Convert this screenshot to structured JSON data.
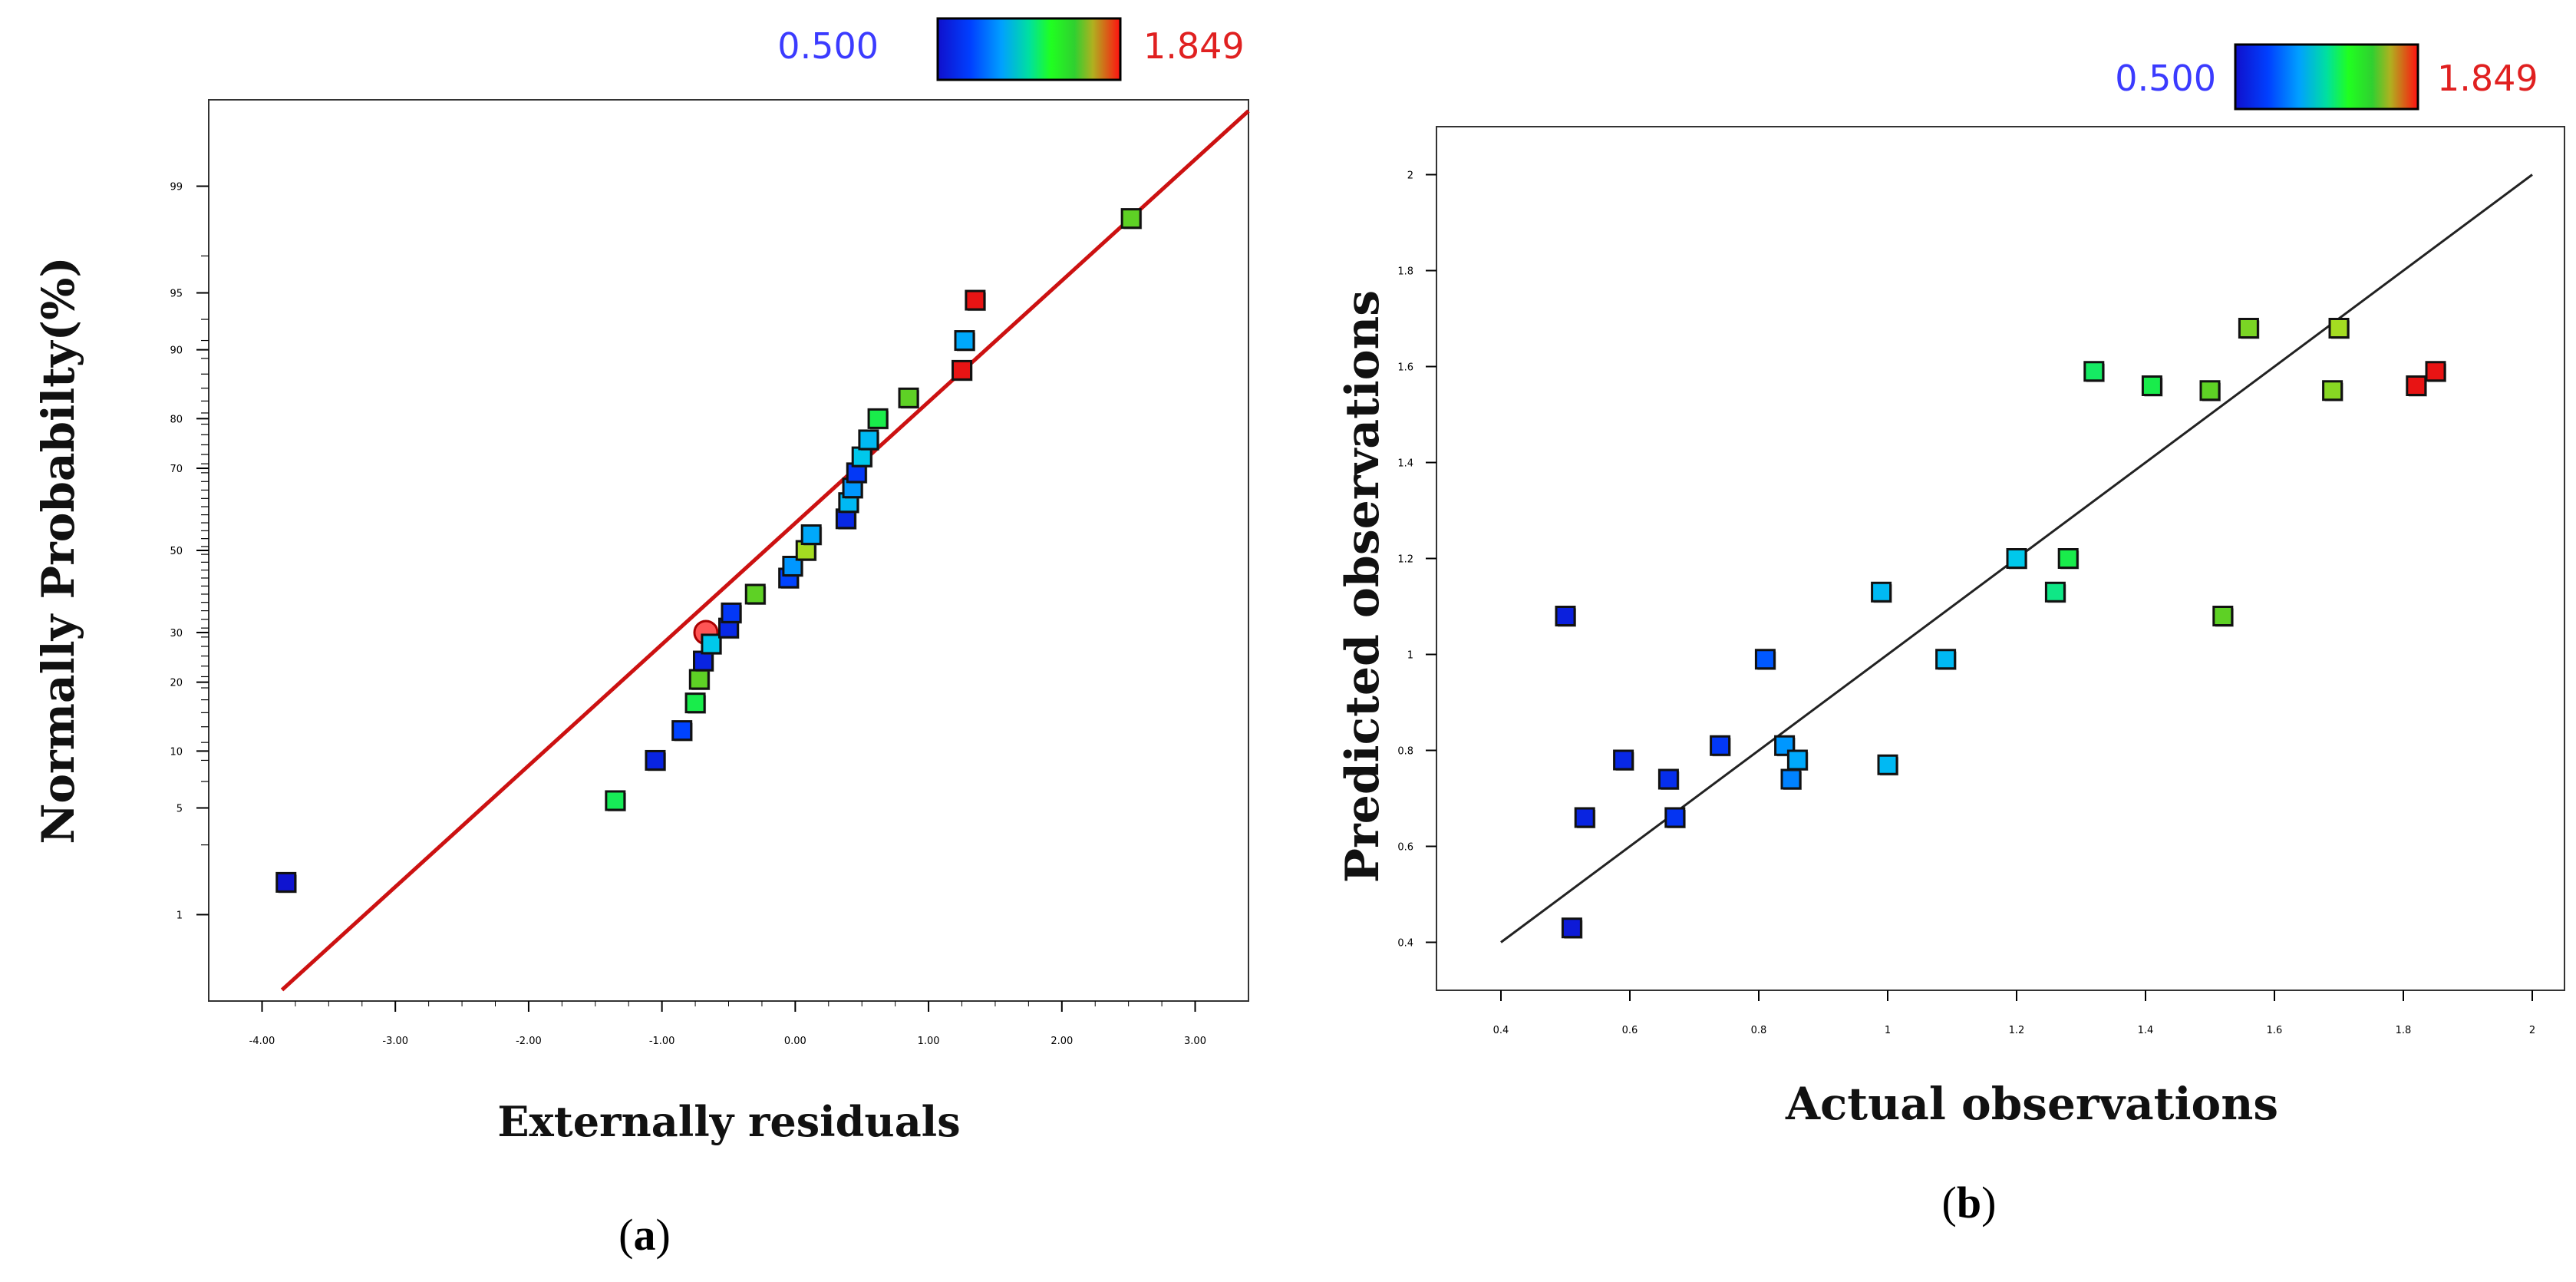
{
  "colors": {
    "low": "#3b3bff",
    "high": "#e02020",
    "fitline_a": "#cc1111",
    "fitline_b": "#222222"
  },
  "chart_data": [
    {
      "id": "a",
      "type": "scatter",
      "panel_label": "a",
      "xlabel": "Externally residuals",
      "ylabel": "Normally Probabilty(%)",
      "xlim": [
        -4.4,
        3.4
      ],
      "xticks": [
        "-4.00",
        "-3.00",
        "-2.00",
        "-1.00",
        "0.00",
        "1.00",
        "2.00",
        "3.00"
      ],
      "xtick_values": [
        -4,
        -3,
        -2,
        -1,
        0,
        1,
        2,
        3
      ],
      "yscale": "normal-probability",
      "ylim": [
        0.2,
        99.8
      ],
      "yticks": [
        "1",
        "5",
        "10",
        "20",
        "30",
        "50",
        "70",
        "80",
        "90",
        "95",
        "99"
      ],
      "ytick_values": [
        1,
        5,
        10,
        20,
        30,
        50,
        70,
        80,
        90,
        95,
        99
      ],
      "colorbar": {
        "min_label": "0.500",
        "max_label": "1.849",
        "min": 0.5,
        "max": 1.849
      },
      "fit_line": {
        "x": [
          -3.85,
          3.4
        ],
        "y": [
          0.25,
          99.75
        ]
      },
      "points": [
        {
          "x": -3.82,
          "y": 1.7,
          "v": 0.52
        },
        {
          "x": -1.35,
          "y": 5.5,
          "v": 1.29
        },
        {
          "x": -1.05,
          "y": 9.0,
          "v": 0.6
        },
        {
          "x": -0.85,
          "y": 12.5,
          "v": 0.75
        },
        {
          "x": -0.75,
          "y": 16.5,
          "v": 1.3
        },
        {
          "x": -0.72,
          "y": 20.5,
          "v": 1.55
        },
        {
          "x": -0.69,
          "y": 24.0,
          "v": 0.6
        },
        {
          "x": -0.67,
          "y": 30.0,
          "v": 1.849,
          "circle": true
        },
        {
          "x": -0.63,
          "y": 27.5,
          "v": 1.1
        },
        {
          "x": -0.5,
          "y": 31.0,
          "v": 0.62
        },
        {
          "x": -0.48,
          "y": 34.5,
          "v": 0.7
        },
        {
          "x": -0.3,
          "y": 39.0,
          "v": 1.55
        },
        {
          "x": -0.05,
          "y": 43.0,
          "v": 0.75
        },
        {
          "x": -0.02,
          "y": 46.0,
          "v": 0.95
        },
        {
          "x": 0.08,
          "y": 50.0,
          "v": 1.6
        },
        {
          "x": 0.12,
          "y": 54.0,
          "v": 1.0
        },
        {
          "x": 0.38,
          "y": 58.0,
          "v": 0.62
        },
        {
          "x": 0.4,
          "y": 62.0,
          "v": 1.05
        },
        {
          "x": 0.43,
          "y": 65.5,
          "v": 0.95
        },
        {
          "x": 0.46,
          "y": 69.0,
          "v": 0.7
        },
        {
          "x": 0.5,
          "y": 72.5,
          "v": 1.1
        },
        {
          "x": 0.55,
          "y": 76.0,
          "v": 1.05
        },
        {
          "x": 0.62,
          "y": 80.0,
          "v": 1.3
        },
        {
          "x": 0.85,
          "y": 83.5,
          "v": 1.55
        },
        {
          "x": 1.25,
          "y": 87.5,
          "v": 1.849
        },
        {
          "x": 1.27,
          "y": 91.0,
          "v": 1.0
        },
        {
          "x": 1.35,
          "y": 94.5,
          "v": 1.849
        },
        {
          "x": 2.52,
          "y": 98.3,
          "v": 1.55
        }
      ]
    },
    {
      "id": "b",
      "type": "scatter",
      "panel_label": "b",
      "xlabel": "Actual   observations",
      "ylabel": "Predicted observations",
      "xlim": [
        0.3,
        2.05
      ],
      "xticks": [
        "0.4",
        "0.6",
        "0.8",
        "1",
        "1.2",
        "1.4",
        "1.6",
        "1.8",
        "2"
      ],
      "xtick_values": [
        0.4,
        0.6,
        0.8,
        1.0,
        1.2,
        1.4,
        1.6,
        1.8,
        2.0
      ],
      "ylim": [
        0.3,
        2.1
      ],
      "yticks": [
        "0.4",
        "0.6",
        "0.8",
        "1",
        "1.2",
        "1.4",
        "1.6",
        "1.8",
        "2"
      ],
      "ytick_values": [
        0.4,
        0.6,
        0.8,
        1.0,
        1.2,
        1.4,
        1.6,
        1.8,
        2.0
      ],
      "colorbar": {
        "min_label": "0.500",
        "max_label": "1.849",
        "min": 0.5,
        "max": 1.849
      },
      "fit_line": {
        "x": [
          0.4,
          2.0
        ],
        "y": [
          0.4,
          2.0
        ]
      },
      "points": [
        {
          "x": 0.51,
          "y": 0.43,
          "v": 0.55
        },
        {
          "x": 0.5,
          "y": 1.08,
          "v": 0.58
        },
        {
          "x": 0.53,
          "y": 0.66,
          "v": 0.6
        },
        {
          "x": 0.59,
          "y": 0.78,
          "v": 0.62
        },
        {
          "x": 0.66,
          "y": 0.74,
          "v": 0.65
        },
        {
          "x": 0.67,
          "y": 0.66,
          "v": 0.68
        },
        {
          "x": 0.74,
          "y": 0.81,
          "v": 0.7
        },
        {
          "x": 0.81,
          "y": 0.99,
          "v": 0.8
        },
        {
          "x": 0.84,
          "y": 0.81,
          "v": 0.95
        },
        {
          "x": 0.85,
          "y": 0.74,
          "v": 0.9
        },
        {
          "x": 0.86,
          "y": 0.78,
          "v": 1.0
        },
        {
          "x": 0.99,
          "y": 1.13,
          "v": 1.05
        },
        {
          "x": 1.0,
          "y": 0.77,
          "v": 1.05
        },
        {
          "x": 1.09,
          "y": 0.99,
          "v": 1.05
        },
        {
          "x": 1.2,
          "y": 1.2,
          "v": 1.1
        },
        {
          "x": 1.26,
          "y": 1.13,
          "v": 1.25
        },
        {
          "x": 1.28,
          "y": 1.2,
          "v": 1.3
        },
        {
          "x": 1.32,
          "y": 1.59,
          "v": 1.28
        },
        {
          "x": 1.41,
          "y": 1.56,
          "v": 1.3
        },
        {
          "x": 1.5,
          "y": 1.55,
          "v": 1.55
        },
        {
          "x": 1.52,
          "y": 1.08,
          "v": 1.55
        },
        {
          "x": 1.56,
          "y": 1.68,
          "v": 1.57
        },
        {
          "x": 1.69,
          "y": 1.55,
          "v": 1.58
        },
        {
          "x": 1.7,
          "y": 1.68,
          "v": 1.6
        },
        {
          "x": 1.82,
          "y": 1.56,
          "v": 1.849
        },
        {
          "x": 1.85,
          "y": 1.59,
          "v": 1.849
        }
      ]
    }
  ]
}
